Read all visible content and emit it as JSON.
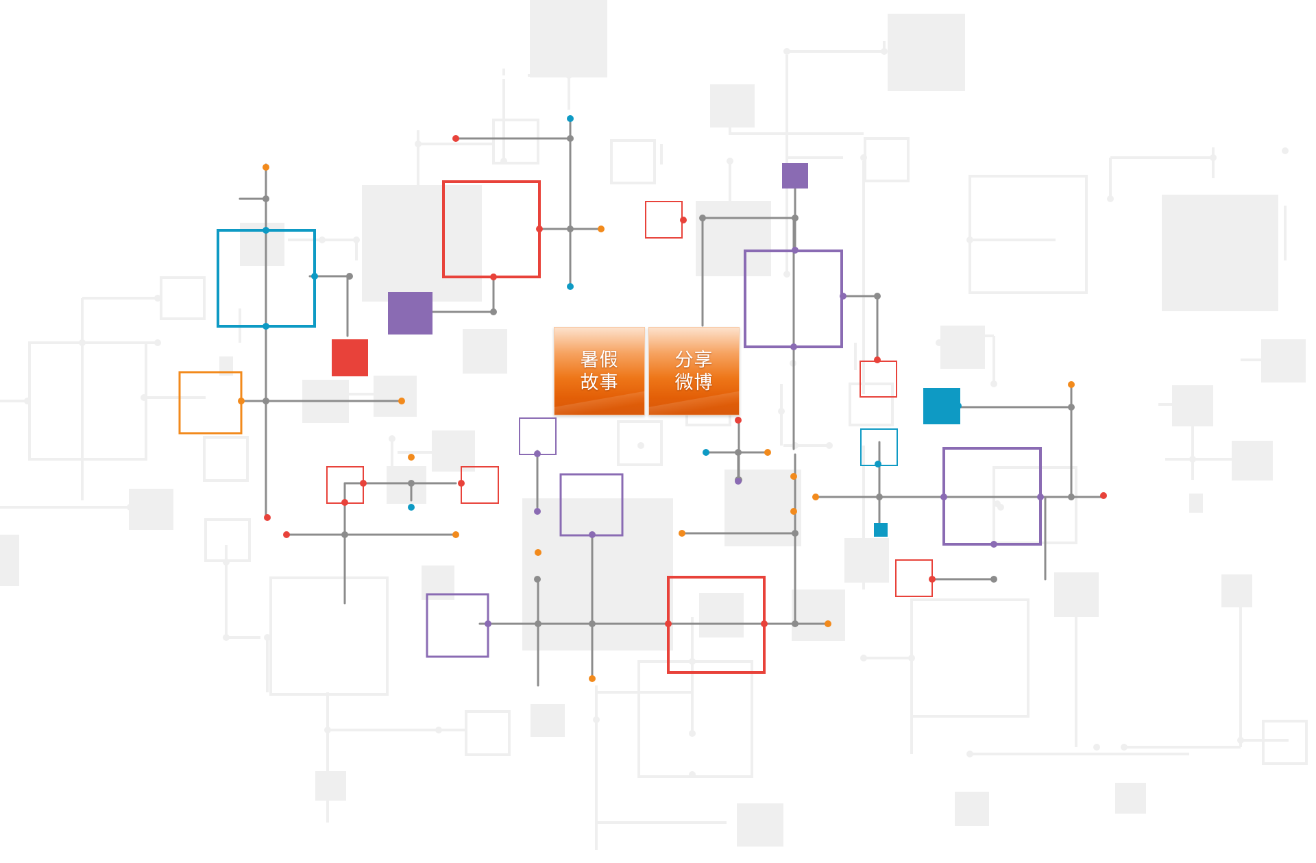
{
  "menu": {
    "summer_story": {
      "line1": "暑假",
      "line2": "故事"
    },
    "share_weibo": {
      "line1": "分享",
      "line2": "微博"
    }
  },
  "colors": {
    "background": "#ffffff",
    "faint_shape": "#efefef",
    "connector": "#8c8c8c",
    "red": "#e8423a",
    "blue": "#0e9ac4",
    "orange": "#f28a1c",
    "purple": "#8a6bb3",
    "tile_orange": "#ee7618"
  }
}
